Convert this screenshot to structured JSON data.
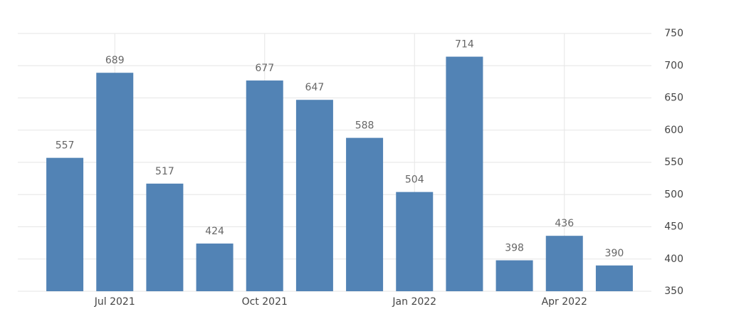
{
  "chart_data": {
    "type": "bar",
    "categories": [
      null,
      "Jul 2021",
      null,
      null,
      "Oct 2021",
      null,
      null,
      "Jan 2022",
      null,
      null,
      "Apr 2022",
      null
    ],
    "values": [
      557,
      689,
      517,
      424,
      677,
      647,
      588,
      504,
      714,
      398,
      436,
      390
    ],
    "color": "#5283b5",
    "ylim": [
      350,
      750
    ],
    "yticks": [
      350,
      400,
      450,
      500,
      550,
      600,
      650,
      700,
      750
    ],
    "grid": true,
    "y_axis_side": "right"
  }
}
